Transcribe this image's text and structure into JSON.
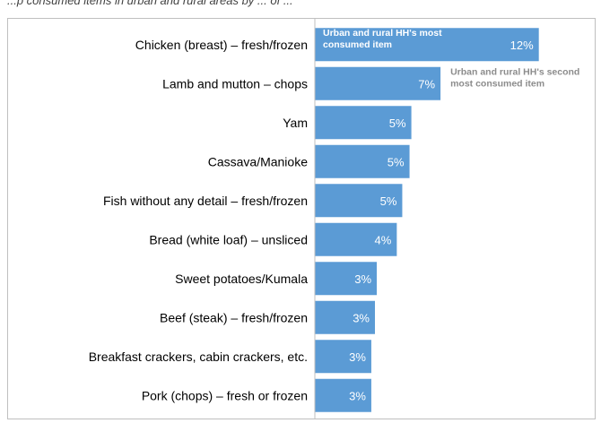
{
  "caption": "...p consumed items in urban and rural areas by ... of ...",
  "chart_data": {
    "type": "bar",
    "orientation": "horizontal",
    "categories": [
      "Chicken (breast) – fresh/frozen",
      "Lamb and mutton – chops",
      "Yam",
      "Cassava/Manioke",
      "Fish without any detail – fresh/frozen",
      "Bread (white loaf) – unsliced",
      "Sweet potatoes/Kumala",
      "Beef (steak) – fresh/frozen",
      "Breakfast crackers, cabin crackers, etc.",
      "Pork (chops) – fresh or frozen"
    ],
    "values": [
      12,
      7,
      5,
      5,
      5,
      4,
      3,
      3,
      3,
      3
    ],
    "value_labels": [
      "12%",
      "7%",
      "5%",
      "5%",
      "5%",
      "4%",
      "3%",
      "3%",
      "3%",
      "3%"
    ],
    "bar_widths_pct": [
      12.3,
      6.9,
      5.3,
      5.2,
      4.8,
      4.5,
      3.4,
      3.3,
      3.1,
      3.1
    ],
    "xlim": [
      0,
      15
    ],
    "grid": false,
    "bar_color": "#5b9bd5",
    "annotations": [
      {
        "category_index": 0,
        "text": "Urban and rural HH's most consumed item",
        "placement": "inside-bar",
        "color": "#ffffff"
      },
      {
        "category_index": 1,
        "text": "Urban and rural HH's second most consumed item",
        "placement": "right-of-bar",
        "color": "#8c8c8c"
      }
    ]
  }
}
